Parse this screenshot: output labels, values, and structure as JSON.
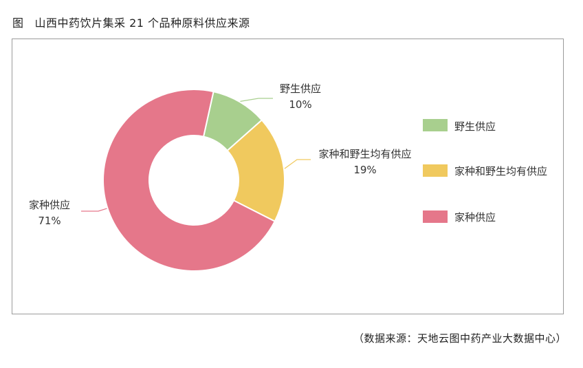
{
  "figure": {
    "prefix": "图",
    "title": "山西中药饮片集采 21 个品种原料供应来源",
    "source": "（数据来源：天地云图中药产业大数据中心）"
  },
  "chart_data": {
    "type": "pie",
    "style": "donut",
    "title": "山西中药饮片集采 21 个品种原料供应来源",
    "slices": [
      {
        "label": "野生供应",
        "value": 10,
        "value_label": "10%",
        "color": "#a8cf8e"
      },
      {
        "label": "家种和野生均有供应",
        "value": 19,
        "value_label": "19%",
        "color": "#f0c95e"
      },
      {
        "label": "家种供应",
        "value": 71,
        "value_label": "71%",
        "color": "#e5778a"
      }
    ],
    "legend_position": "right",
    "legend": [
      "野生供应",
      "家种和野生均有供应",
      "家种供应"
    ]
  }
}
